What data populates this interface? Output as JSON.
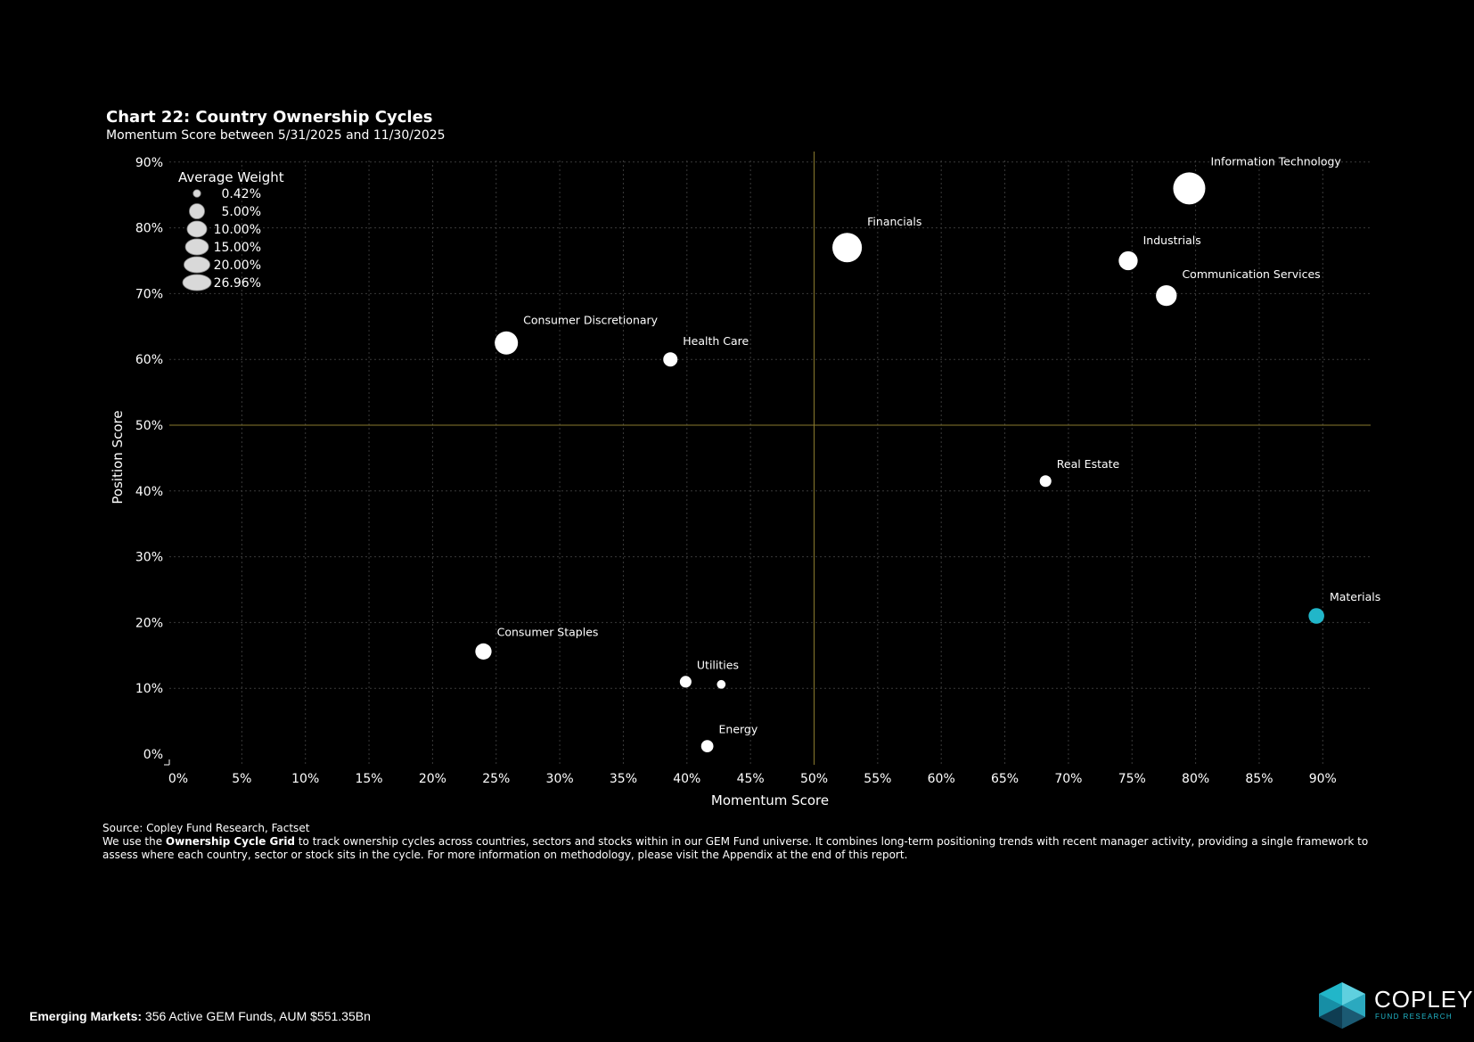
{
  "header": {
    "title": "Chart 22:  Country Ownership Cycles",
    "subtitle": "Momentum Score between 5/31/2025 and 11/30/2025"
  },
  "chart_data": {
    "type": "scatter",
    "title": "Chart 22:  Country Ownership Cycles",
    "subtitle": "Momentum Score between 5/31/2025 and 11/30/2025",
    "xlabel": "Momentum Score",
    "ylabel": "Position Score",
    "xlim": [
      0,
      95
    ],
    "ylim": [
      0,
      90
    ],
    "x_ticks": [
      0,
      5,
      10,
      15,
      20,
      25,
      30,
      35,
      40,
      45,
      50,
      55,
      60,
      65,
      70,
      75,
      80,
      85,
      90
    ],
    "x_tick_labels": [
      "0%",
      "5%",
      "10%",
      "15%",
      "20%",
      "25%",
      "30%",
      "35%",
      "40%",
      "45%",
      "50%",
      "55%",
      "60%",
      "65%",
      "70%",
      "75%",
      "80%",
      "85%",
      "90%"
    ],
    "y_ticks": [
      0,
      10,
      20,
      30,
      40,
      50,
      60,
      70,
      80,
      90
    ],
    "y_tick_labels": [
      "0%",
      "10%",
      "20%",
      "30%",
      "40%",
      "50%",
      "60%",
      "70%",
      "80%",
      "90%"
    ],
    "grid": true,
    "reference_lines": {
      "x": 50,
      "y": 50,
      "color": "#8a7a2e"
    },
    "legend": {
      "title": "Average Weight",
      "placement": "top-left",
      "entries": [
        {
          "weight": 0.42,
          "label": "0.42%"
        },
        {
          "weight": 5.0,
          "label": "5.00%"
        },
        {
          "weight": 10.0,
          "label": "10.00%"
        },
        {
          "weight": 15.0,
          "label": "15.00%"
        },
        {
          "weight": 20.0,
          "label": "20.00%"
        },
        {
          "weight": 26.96,
          "label": "26.96%"
        }
      ]
    },
    "points": [
      {
        "name": "Information Technology",
        "x": 79.5,
        "y": 86.0,
        "weight": 26.96,
        "color": "#ffffff",
        "labeled": true
      },
      {
        "name": "Financials",
        "x": 52.6,
        "y": 77.0,
        "weight": 22.0,
        "color": "#ffffff",
        "labeled": true
      },
      {
        "name": "Industrials",
        "x": 74.7,
        "y": 75.0,
        "weight": 7.0,
        "color": "#ffffff",
        "labeled": true
      },
      {
        "name": "Communication Services",
        "x": 77.7,
        "y": 69.7,
        "weight": 9.0,
        "color": "#ffffff",
        "labeled": true
      },
      {
        "name": "Consumer Discretionary",
        "x": 25.8,
        "y": 62.5,
        "weight": 12.0,
        "color": "#ffffff",
        "labeled": true
      },
      {
        "name": "Health Care",
        "x": 38.7,
        "y": 60.0,
        "weight": 3.0,
        "color": "#ffffff",
        "labeled": true
      },
      {
        "name": "Real Estate",
        "x": 68.2,
        "y": 41.5,
        "weight": 1.5,
        "color": "#ffffff",
        "labeled": true
      },
      {
        "name": "Materials",
        "x": 89.5,
        "y": 21.0,
        "weight": 4.0,
        "color": "#21b6c9",
        "labeled": true
      },
      {
        "name": "Consumer Staples",
        "x": 24.0,
        "y": 15.6,
        "weight": 4.5,
        "color": "#ffffff",
        "labeled": true
      },
      {
        "name": "Utilities",
        "x": 39.9,
        "y": 11.0,
        "weight": 1.5,
        "color": "#ffffff",
        "labeled": true
      },
      {
        "name": "",
        "x": 42.7,
        "y": 10.6,
        "weight": 0.42,
        "color": "#ffffff",
        "labeled": false
      },
      {
        "name": "Energy",
        "x": 41.6,
        "y": 1.2,
        "weight": 1.8,
        "color": "#ffffff",
        "labeled": true
      }
    ]
  },
  "footnote": {
    "source": "Source:  Copley Fund Research, Factset",
    "text_before": "We use the ",
    "bold": "Ownership Cycle Grid",
    "text_after": " to track ownership cycles across countries, sectors and stocks within in our GEM Fund universe. It combines long-term positioning trends with recent manager activity, providing a single framework to assess where each country, sector or stock sits in the cycle. For more information on methodology, please visit the Appendix at the end of this report."
  },
  "footer": {
    "region_label": "Emerging Markets:",
    "summary": " 356 Active GEM Funds, AUM $551.35Bn"
  },
  "logo": {
    "name": "COPLEY",
    "tagline": "FUND RESEARCH"
  },
  "colors": {
    "background": "#000000",
    "grid": "#3a3a3a",
    "reference": "#8a7a2e",
    "accent": "#21b6c9",
    "legend_marker": "#d9d9d9"
  }
}
